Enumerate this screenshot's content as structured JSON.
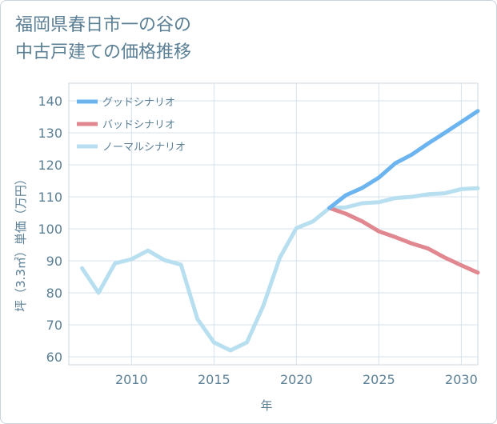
{
  "chart_data": {
    "type": "line",
    "title_lines": [
      "福岡県春日市一の谷の",
      "中古戸建ての価格推移"
    ],
    "xlabel": "年",
    "ylabel": "坪（3.3㎡）単価（万円）",
    "xlim": [
      2006.2,
      2031
    ],
    "ylim": [
      57.5,
      145.5
    ],
    "x_ticks": [
      2010,
      2015,
      2020,
      2025,
      2030
    ],
    "y_ticks": [
      60,
      70,
      80,
      90,
      100,
      110,
      120,
      130,
      140
    ],
    "grid": true,
    "legend_position": "top-left",
    "series": [
      {
        "name": "グッドシナリオ",
        "color": "#6bb4ef",
        "x": [
          2022,
          2023,
          2024,
          2025,
          2026,
          2027,
          2028,
          2029,
          2030,
          2031
        ],
        "values": [
          106.5,
          110.5,
          112.8,
          116.0,
          120.5,
          123.2,
          126.7,
          130.0,
          133.4,
          136.8
        ]
      },
      {
        "name": "バッドシナリオ",
        "color": "#e0878f",
        "x": [
          2022,
          2023,
          2024,
          2025,
          2026,
          2027,
          2028,
          2029,
          2030,
          2031
        ],
        "values": [
          106.5,
          104.7,
          102.3,
          99.2,
          97.4,
          95.4,
          93.8,
          91.0,
          88.6,
          86.3
        ]
      },
      {
        "name": "ノーマルシナリオ",
        "color": "#b8dff0",
        "x": [
          2007,
          2008,
          2009,
          2010,
          2011,
          2012,
          2013,
          2014,
          2015,
          2016,
          2017,
          2018,
          2019,
          2020,
          2021,
          2022,
          2023,
          2024,
          2025,
          2026,
          2027,
          2028,
          2029,
          2030,
          2031
        ],
        "values": [
          87.7,
          80.0,
          89.2,
          90.5,
          93.2,
          90.2,
          88.8,
          71.8,
          64.5,
          62.0,
          64.5,
          76.0,
          91.0,
          100.2,
          102.3,
          106.5,
          106.7,
          108.0,
          108.3,
          109.6,
          110.0,
          110.8,
          111.1,
          112.4,
          112.7
        ]
      }
    ]
  }
}
